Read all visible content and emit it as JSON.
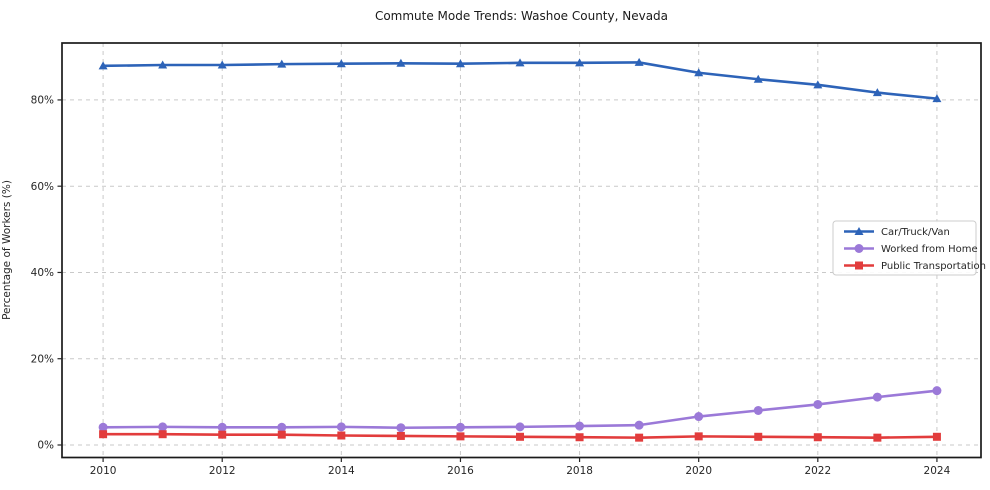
{
  "chart_data": {
    "type": "line",
    "title": "Commute Mode Trends: Washoe County, Nevada",
    "xlabel": "",
    "ylabel": "Percentage of Workers (%)",
    "x": [
      2010,
      2011,
      2012,
      2013,
      2014,
      2015,
      2016,
      2017,
      2018,
      2019,
      2020,
      2021,
      2022,
      2023,
      2024
    ],
    "series": [
      {
        "name": "Car/Truck/Van",
        "color": "#2d63b8",
        "marker": "triangle",
        "values": [
          87.9,
          88.1,
          88.1,
          88.3,
          88.4,
          88.5,
          88.4,
          88.6,
          88.6,
          88.7,
          86.3,
          84.8,
          83.5,
          81.7,
          80.3
        ]
      },
      {
        "name": "Worked from Home",
        "color": "#9b79d8",
        "marker": "circle",
        "values": [
          4.1,
          4.2,
          4.1,
          4.1,
          4.2,
          4.0,
          4.1,
          4.2,
          4.4,
          4.6,
          6.6,
          8.0,
          9.4,
          11.1,
          12.6
        ]
      },
      {
        "name": "Public Transportation",
        "color": "#e23c3c",
        "marker": "square",
        "values": [
          2.5,
          2.5,
          2.4,
          2.4,
          2.2,
          2.1,
          2.0,
          1.9,
          1.8,
          1.7,
          2.0,
          1.9,
          1.8,
          1.7,
          1.9
        ]
      }
    ],
    "xticks": [
      2010,
      2012,
      2014,
      2016,
      2018,
      2020,
      2022,
      2024
    ],
    "xtick_labels": [
      "2010",
      "2012",
      "2014",
      "2016",
      "2018",
      "2020",
      "2022",
      "2024"
    ],
    "yticks": [
      0,
      20,
      40,
      60,
      80
    ],
    "ytick_labels": [
      "0%",
      "20%",
      "40%",
      "60%",
      "80%"
    ],
    "xlim": [
      2009.31,
      2024.74
    ],
    "ylim": [
      -2.9,
      93.2
    ],
    "grid": true,
    "legend_position": "center-right",
    "colors": {
      "grid": "#c9c9c9",
      "spine": "#1a1a1a",
      "tick_text": "#262626",
      "legend_border": "#cccccc",
      "background": "#ffffff"
    }
  }
}
